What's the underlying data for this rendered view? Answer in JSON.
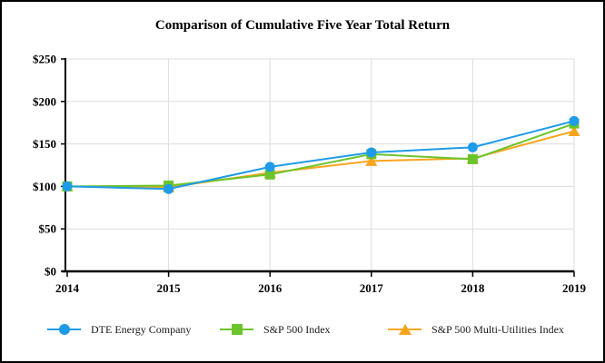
{
  "frame": {
    "background": "#ffffff",
    "border_color": "#000000"
  },
  "chart_data": {
    "type": "line",
    "title": "Comparison of Cumulative Five Year Total Return",
    "x": [
      "2014",
      "2015",
      "2016",
      "2017",
      "2018",
      "2019"
    ],
    "xlabel": "",
    "ylabel": "",
    "ylim": [
      0,
      250
    ],
    "y_tick_step": 50,
    "y_tick_labels": [
      "$0",
      "$50",
      "$100",
      "$150",
      "$200",
      "$250"
    ],
    "grid": true,
    "grid_color": "#dddddd",
    "axis_color": "#000000",
    "legend_position": "bottom",
    "series": [
      {
        "name": "DTE Energy Company",
        "marker": "circle",
        "color": "#1e9be9",
        "values": [
          100,
          97,
          123,
          140,
          146,
          177
        ]
      },
      {
        "name": "S&P 500 Index",
        "marker": "square",
        "color": "#6cc42a",
        "values": [
          100,
          101,
          114,
          138,
          132,
          174
        ]
      },
      {
        "name": "S&P 500 Multi-Utilities Index",
        "marker": "triangle",
        "color": "#f9a51c",
        "values": [
          100,
          99,
          116,
          130,
          133,
          165
        ]
      }
    ]
  }
}
